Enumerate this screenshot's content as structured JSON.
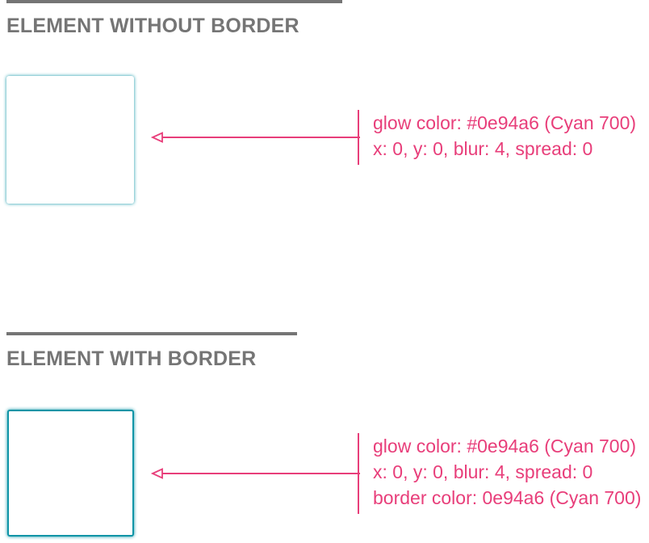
{
  "sections": [
    {
      "title": "ELEMENT WITHOUT BORDER",
      "annotation": {
        "glow": "glow color: #0e94a6 (Cyan 700)",
        "shadow": "x: 0, y: 0, blur: 4, spread: 0"
      }
    },
    {
      "title": "ELEMENT WITH BORDER",
      "annotation": {
        "glow": "glow color: #0e94a6 (Cyan 700)",
        "shadow": "x: 0, y: 0, blur: 4, spread: 0",
        "border": "border color: 0e94a6 (Cyan 700)"
      }
    }
  ],
  "colors": {
    "glow": "#0e94a6",
    "annotation": "#e83e7a",
    "heading": "#757575"
  }
}
